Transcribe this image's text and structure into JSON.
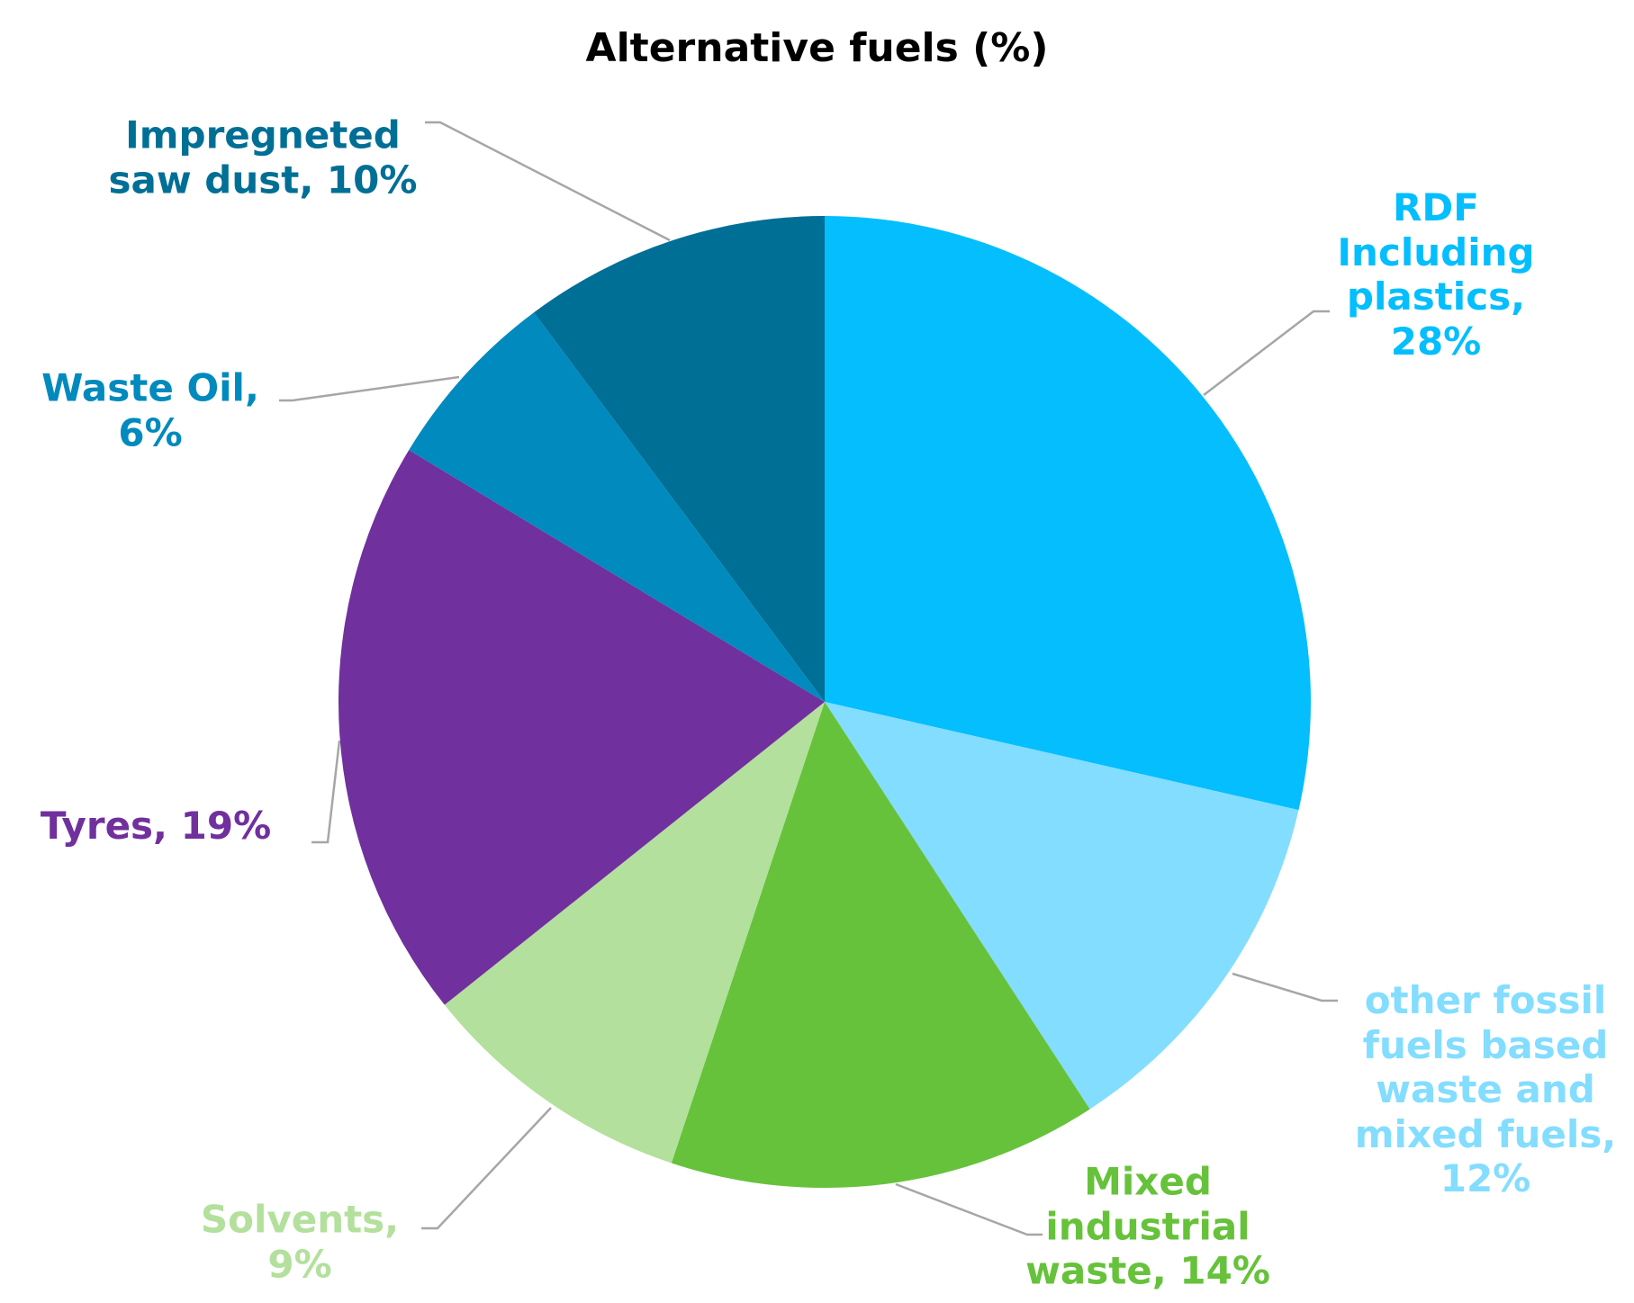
{
  "chart_data": {
    "type": "pie",
    "title": "Alternative fuels (%)",
    "categories": [
      "RDF Including plastics,",
      "other fossil fuels based waste and mixed fuels,",
      "Mixed industrial waste,",
      "Solvents,",
      "Tyres,",
      "Waste Oil,",
      "Impregneted saw dust,"
    ],
    "values": [
      28,
      12,
      14,
      9,
      19,
      6,
      10
    ],
    "value_labels": [
      "28%",
      "12%",
      "14%",
      "9%",
      "19%",
      "6%",
      "10%"
    ],
    "colors": [
      "#04befe",
      "#83ddff",
      "#66c23a",
      "#b3e09c",
      "#70309d",
      "#008abe",
      "#006f96"
    ]
  }
}
